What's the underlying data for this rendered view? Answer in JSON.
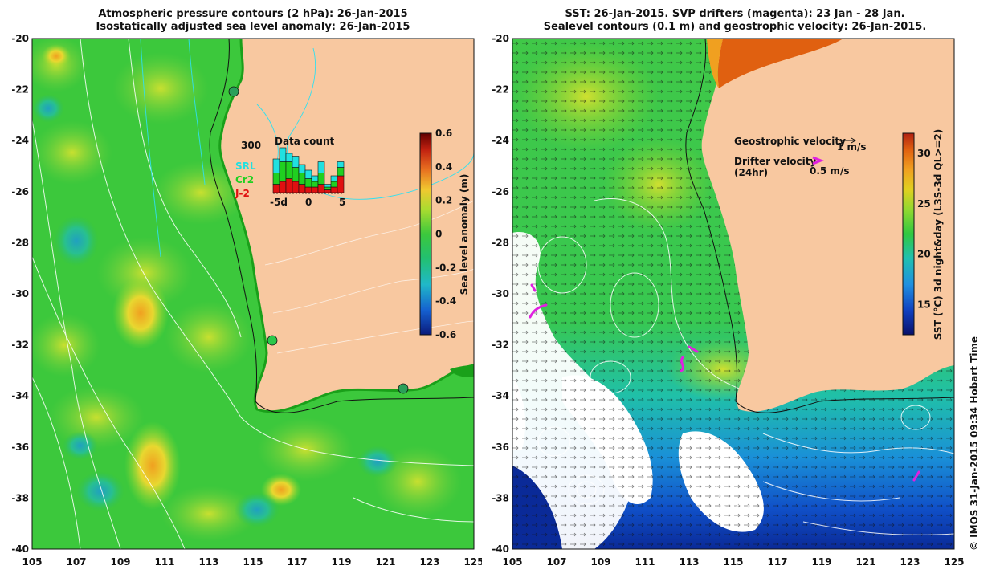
{
  "left_panel": {
    "title_line1": "Atmospheric pressure contours (2 hPa): 26-Jan-2015",
    "title_line2": "Isostatically adjusted sea level anomaly: 26-Jan-2015",
    "lat_ticks": [
      "-20",
      "-22",
      "-24",
      "-26",
      "-28",
      "-30",
      "-32",
      "-34",
      "-36",
      "-38",
      "-40"
    ],
    "lon_ticks": [
      "105",
      "107",
      "109",
      "111",
      "113",
      "115",
      "117",
      "119",
      "121",
      "123",
      "125"
    ],
    "colorbar": {
      "label": "Sea level anomaly (m)",
      "ticks": [
        "0.6",
        "0.4",
        "0.2",
        "0",
        "-0.2",
        "-0.4",
        "-0.6"
      ],
      "colors": [
        "#0b1a7a",
        "#1560d0",
        "#20b8c8",
        "#2ec85a",
        "#6ad63a",
        "#c8e030",
        "#f0c030",
        "#e87020",
        "#c02010",
        "#600000"
      ]
    },
    "inset": {
      "title": "Data count",
      "y_label": "300",
      "x_ticks": [
        "-5d",
        "0",
        "5"
      ],
      "legend": [
        {
          "label": "SRL",
          "color": "#20e0e0"
        },
        {
          "label": "Cr2",
          "color": "#20d020"
        },
        {
          "label": "J-2",
          "color": "#e01010"
        }
      ],
      "bars": [
        {
          "j2": 0.15,
          "cr2": 0.2,
          "srl": 0.25
        },
        {
          "j2": 0.2,
          "cr2": 0.35,
          "srl": 0.25
        },
        {
          "j2": 0.25,
          "cr2": 0.3,
          "srl": 0.15
        },
        {
          "j2": 0.2,
          "cr2": 0.25,
          "srl": 0.2
        },
        {
          "j2": 0.15,
          "cr2": 0.2,
          "srl": 0.15
        },
        {
          "j2": 0.1,
          "cr2": 0.15,
          "srl": 0.15
        },
        {
          "j2": 0.1,
          "cr2": 0.1,
          "srl": 0.1
        },
        {
          "j2": 0.15,
          "cr2": 0.2,
          "srl": 0.2
        },
        {
          "j2": 0.05,
          "cr2": 0.05,
          "srl": 0.05
        },
        {
          "j2": 0.1,
          "cr2": 0.1,
          "srl": 0.1
        },
        {
          "j2": 0.3,
          "cr2": 0.15,
          "srl": 0.1
        }
      ]
    }
  },
  "right_panel": {
    "title_line1": "SST: 26-Jan-2015. SVP drifters (magenta): 23 Jan - 28 Jan.",
    "title_line2": "Sealevel contours (0.1 m) and geostrophic velocity: 26-Jan-2015.",
    "lat_ticks": [
      "-20",
      "-22",
      "-24",
      "-26",
      "-28",
      "-30",
      "-32",
      "-34",
      "-36",
      "-38",
      "-40"
    ],
    "lon_ticks": [
      "105",
      "107",
      "109",
      "111",
      "113",
      "115",
      "117",
      "119",
      "121",
      "123",
      "125"
    ],
    "legend": {
      "geo_label": "Geostrophic velocity",
      "geo_scale": "1 m/s",
      "drifter_label": "Drifter velocity",
      "drifter_sub": "(24hr)",
      "drifter_scale": "0.5 m/s"
    },
    "colorbar": {
      "label": "SST (°C) 3d night&day (L3S-3d QL>=2)",
      "ticks": [
        "30",
        "25",
        "20",
        "15"
      ],
      "colors": [
        "#08106a",
        "#1040c0",
        "#2090e0",
        "#20c0b0",
        "#30c840",
        "#90d830",
        "#e0d020",
        "#f0a020",
        "#e06010",
        "#b02010"
      ]
    }
  },
  "footer": {
    "copyright": "© IMOS 31-Jan-2015 09:34 Hobart Time"
  },
  "colors": {
    "land": "#f8c8a0",
    "sla_green": "#3cc83c",
    "sst_green": "#40c848",
    "drifter": "#e020e0"
  }
}
